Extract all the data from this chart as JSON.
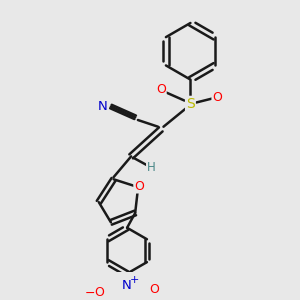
{
  "bg_color": "#e8e8e8",
  "bond_color": "#1a1a1a",
  "bond_width": 1.8,
  "atom_colors": {
    "N_cyano": "#0000cc",
    "C": "#1a1a1a",
    "S": "#bbbb00",
    "O": "#ff0000",
    "N_nitro": "#0000cc",
    "H": "#4a8888"
  },
  "figsize": [
    3.0,
    3.0
  ],
  "dpi": 100,
  "xlim": [
    0,
    10
  ],
  "ylim": [
    0,
    10
  ]
}
